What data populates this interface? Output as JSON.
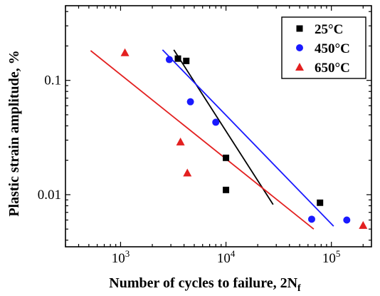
{
  "chart_data": {
    "type": "scatter",
    "xlabel": "Number of cycles to failure, 2N",
    "xlabel_sub": "f",
    "ylabel": "Plastic strain amplitude, %",
    "x_scale": "log",
    "y_scale": "log",
    "xlim": [
      300,
      240000
    ],
    "ylim": [
      0.0035,
      0.45
    ],
    "x_ticks": [
      {
        "base": "10",
        "exp": "3",
        "value": 1000
      },
      {
        "base": "10",
        "exp": "4",
        "value": 10000
      },
      {
        "base": "10",
        "exp": "5",
        "value": 100000
      }
    ],
    "y_ticks": [
      {
        "label": "0.1",
        "value": 0.1
      },
      {
        "label": "0.01",
        "value": 0.01
      }
    ],
    "legend_position": "top-right",
    "series": [
      {
        "name": "25°C",
        "marker": "square",
        "color": "#000000",
        "points": [
          [
            3500,
            0.155
          ],
          [
            4200,
            0.148
          ],
          [
            10000,
            0.021
          ],
          [
            10000,
            0.011
          ],
          [
            78000,
            0.0085
          ]
        ],
        "fit": [
          [
            3200,
            0.185
          ],
          [
            28000,
            0.0082
          ]
        ]
      },
      {
        "name": "450°C",
        "marker": "circle",
        "color": "#1a1aff",
        "points": [
          [
            2900,
            0.152
          ],
          [
            4600,
            0.065
          ],
          [
            8000,
            0.043
          ],
          [
            65000,
            0.0061
          ],
          [
            140000,
            0.006
          ]
        ],
        "fit": [
          [
            2500,
            0.185
          ],
          [
            105000,
            0.0053
          ]
        ]
      },
      {
        "name": "650°C",
        "marker": "triangle",
        "color": "#e32020",
        "points": [
          [
            1100,
            0.175
          ],
          [
            3700,
            0.029
          ],
          [
            4300,
            0.0155
          ],
          [
            200000,
            0.0054
          ]
        ],
        "fit": [
          [
            520,
            0.182
          ],
          [
            68000,
            0.005
          ]
        ]
      }
    ]
  }
}
